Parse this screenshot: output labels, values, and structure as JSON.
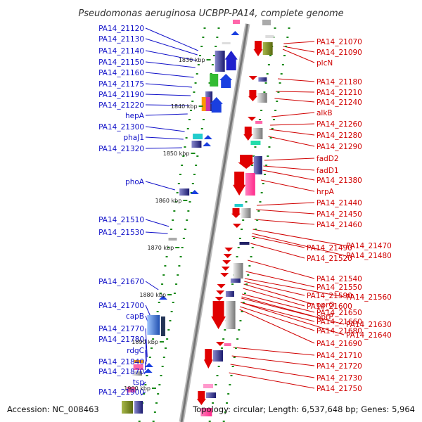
{
  "title": "Pseudomonas aeruginosa UCBPP-PA14, complete genome",
  "footer": {
    "accession": "Accession: NC_008463",
    "topology": "Topology: circular; Length: 6,537,648 bp; Genes: 5,964"
  },
  "colors": {
    "left_label": "#1010c8",
    "right_label": "#d00000",
    "backbone": "#777777",
    "tick": "#1a8a1a"
  },
  "kbp_labels": [
    "1830 kbp",
    "1840 kbp",
    "1850 kbp",
    "1860 kbp",
    "1870 kbp",
    "1880 kbp",
    "1890 kbp",
    "1900 kbp"
  ],
  "left_labels": [
    "PA14_21120",
    "PA14_21130",
    "PA14_21140",
    "PA14_21150",
    "PA14_21160",
    "PA14_21175",
    "PA14_21190",
    "PA14_21220",
    "hepA",
    "PA14_21300",
    "phaJ1",
    "PA14_21320",
    "phoA",
    "PA14_21510",
    "PA14_21530",
    "PA14_21670",
    "PA14_21700",
    "capB",
    "PA14_21770",
    "PA14_21780",
    "rdgC",
    "PA14_21840",
    "PA14_21870",
    "tsp",
    "PA14_21900"
  ],
  "right_labels": [
    "PA14_21070",
    "PA14_21090",
    "plcN",
    "PA14_21180",
    "PA14_21210",
    "PA14_21240",
    "alkB",
    "PA14_21260",
    "PA14_21280",
    "PA14_21290",
    "fadD2",
    "fadD1",
    "PA14_21380",
    "hrpA",
    "PA14_21440",
    "PA14_21450",
    "PA14_21460",
    "PA14_21470",
    "PA14_21480",
    "PA14_21490",
    "PA14_21520",
    "PA14_21540",
    "PA14_21550",
    "PA14_21560",
    "PA14_21590",
    "oprO",
    "PA14_21600",
    "PA14_21650",
    "oprP",
    "PA14_21660",
    "PA14_21630",
    "PA14_21640",
    "PA14_21680",
    "PA14_21690",
    "PA14_21710",
    "PA14_21720",
    "PA14_21730",
    "PA14_21750"
  ]
}
